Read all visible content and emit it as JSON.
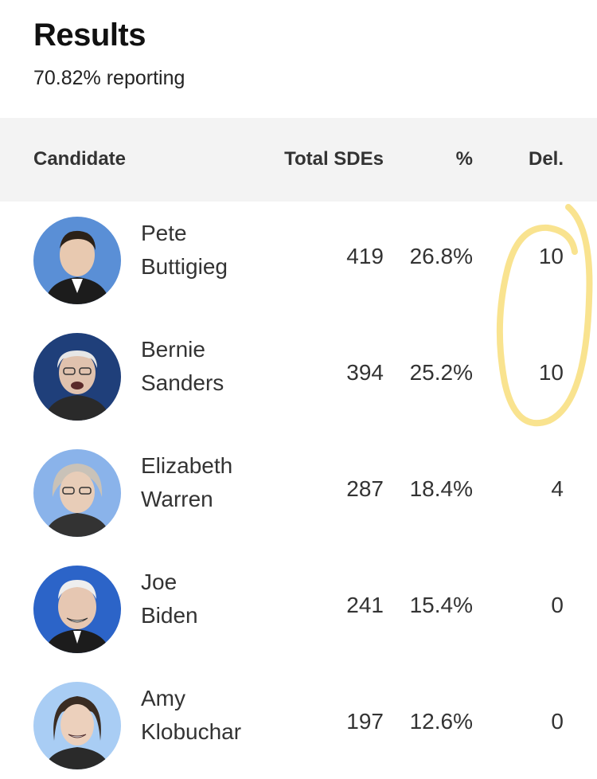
{
  "results": {
    "title": "Results",
    "reporting": "70.82% reporting"
  },
  "columns": {
    "candidate": "Candidate",
    "total_sdes": "Total SDEs",
    "percent": "%",
    "delegates": "Del."
  },
  "candidates": [
    {
      "first": "Pete",
      "last": "Buttigieg",
      "sdes": "419",
      "pct": "26.8%",
      "del": "10",
      "avatar_bg": "#5a8fd6",
      "avatar_icon": "portrait-icon"
    },
    {
      "first": "Bernie",
      "last": "Sanders",
      "sdes": "394",
      "pct": "25.2%",
      "del": "10",
      "avatar_bg": "#1f3f7a",
      "avatar_icon": "portrait-icon"
    },
    {
      "first": "Elizabeth",
      "last": "Warren",
      "sdes": "287",
      "pct": "18.4%",
      "del": "4",
      "avatar_bg": "#8ab3ea",
      "avatar_icon": "portrait-icon"
    },
    {
      "first": "Joe",
      "last": "Biden",
      "sdes": "241",
      "pct": "15.4%",
      "del": "0",
      "avatar_bg": "#2c64c8",
      "avatar_icon": "portrait-icon"
    },
    {
      "first": "Amy",
      "last": "Klobuchar",
      "sdes": "197",
      "pct": "12.6%",
      "del": "0",
      "avatar_bg": "#a9cdf4",
      "avatar_icon": "portrait-icon"
    }
  ],
  "colors": {
    "header_bg": "#f3f3f3",
    "highlight": "#f7d96a"
  }
}
